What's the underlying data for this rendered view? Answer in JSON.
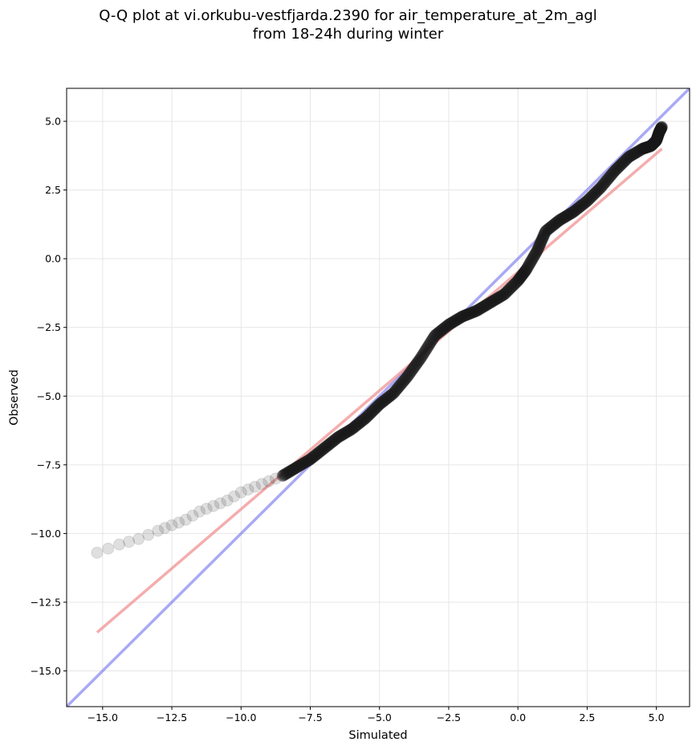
{
  "chart_data": {
    "type": "scatter",
    "title_lines": [
      "Q-Q plot at vi.orkubu-vestfjarda.2390 for air_temperature_at_2m_agl",
      "from 18-24h during winter"
    ],
    "xlabel": "Simulated",
    "ylabel": "Observed",
    "xlim": [
      -16.3,
      6.2
    ],
    "ylim": [
      -16.3,
      6.2
    ],
    "xticks": [
      -15.0,
      -12.5,
      -10.0,
      -7.5,
      -5.0,
      -2.5,
      0.0,
      2.5,
      5.0
    ],
    "yticks": [
      -15.0,
      -12.5,
      -10.0,
      -7.5,
      -5.0,
      -2.5,
      0.0,
      2.5,
      5.0
    ],
    "xtick_labels": [
      "−15.0",
      "−12.5",
      "−10.0",
      "−7.5",
      "−5.0",
      "−2.5",
      "0.0",
      "2.5",
      "5.0"
    ],
    "ytick_labels": [
      "−15.0",
      "−12.5",
      "−10.0",
      "−7.5",
      "−5.0",
      "−2.5",
      "0.0",
      "2.5",
      "5.0"
    ],
    "grid": true,
    "colors": {
      "points": "#1a1a1a",
      "identity_line": "#7b7bf0",
      "fit_line": "#f08a8a",
      "grid": "#e6e6e6"
    },
    "identity_line": {
      "x": [
        -16.3,
        6.2
      ],
      "y": [
        -16.3,
        6.2
      ]
    },
    "fit_line": {
      "x": [
        -15.2,
        5.2
      ],
      "y": [
        -13.6,
        4.0
      ]
    },
    "quantile_curve": {
      "x": [
        -15.2,
        -14.4,
        -13.7,
        -13.0,
        -12.5,
        -12.0,
        -11.5,
        -11.0,
        -10.5,
        -10.0,
        -9.5,
        -9.0,
        -8.5,
        -8.0,
        -7.5,
        -7.0,
        -6.5,
        -6.0,
        -5.5,
        -5.0,
        -4.5,
        -4.0,
        -3.5,
        -3.0,
        -2.5,
        -2.0,
        -1.5,
        -1.0,
        -0.5,
        0.0,
        0.3,
        0.7,
        1.0,
        1.5,
        2.0,
        2.5,
        3.0,
        3.5,
        4.0,
        4.5,
        4.8,
        5.0,
        5.1,
        5.2
      ],
      "y": [
        -10.7,
        -10.4,
        -10.2,
        -9.9,
        -9.7,
        -9.5,
        -9.2,
        -9.0,
        -8.8,
        -8.5,
        -8.3,
        -8.1,
        -7.9,
        -7.6,
        -7.3,
        -6.9,
        -6.5,
        -6.2,
        -5.8,
        -5.3,
        -4.9,
        -4.3,
        -3.6,
        -2.8,
        -2.4,
        -2.1,
        -1.9,
        -1.6,
        -1.3,
        -0.8,
        -0.4,
        0.3,
        1.0,
        1.4,
        1.7,
        2.1,
        2.6,
        3.2,
        3.7,
        4.0,
        4.1,
        4.3,
        4.6,
        4.8
      ]
    }
  }
}
